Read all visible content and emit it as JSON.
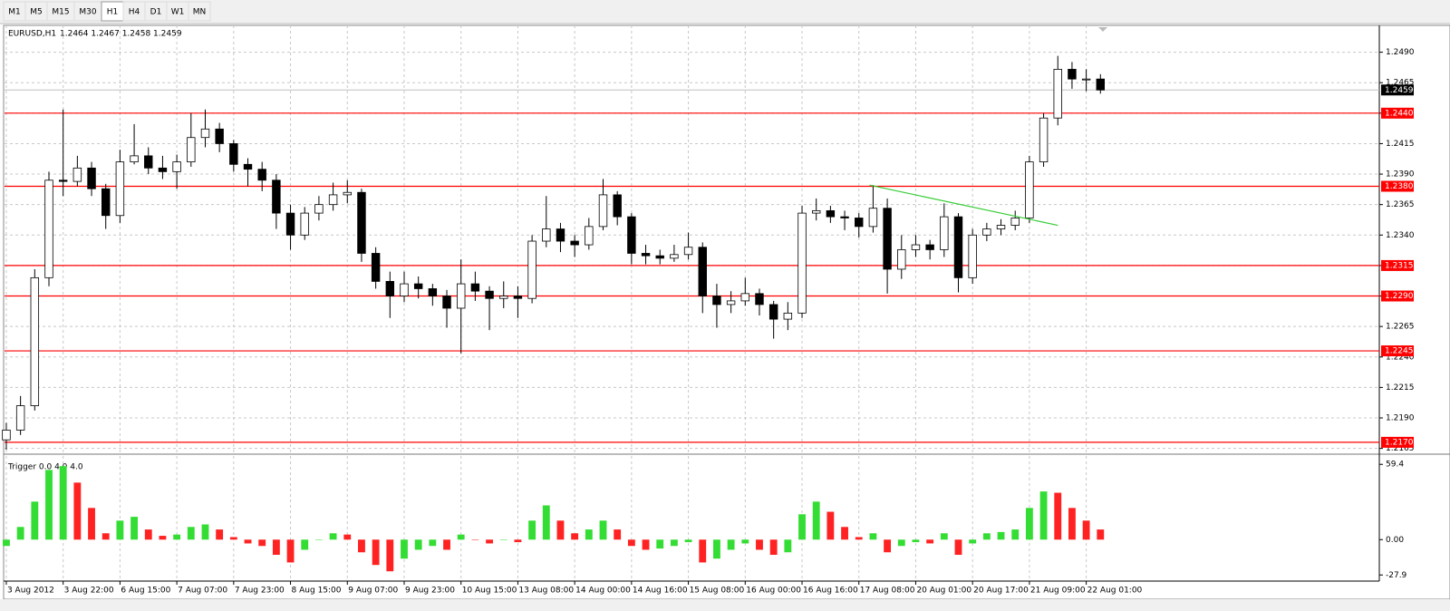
{
  "toolbar": {
    "buttons": [
      "M1",
      "M5",
      "M15",
      "M30",
      "H1",
      "H4",
      "D1",
      "W1",
      "MN"
    ],
    "selected": "H1"
  },
  "chart_data": [
    {
      "type": "candlestick",
      "title": "EURUSD,H1",
      "subtitle": "1.2464 1.2467 1.2458 1.2459",
      "x": [
        0,
        4,
        8,
        12,
        16,
        20,
        24,
        28,
        32,
        36,
        40,
        44,
        48,
        52,
        56,
        60,
        64,
        68,
        72,
        76,
        80,
        84,
        88,
        92,
        96,
        100,
        104,
        108,
        112,
        116,
        120,
        124,
        128,
        132,
        136,
        140,
        144,
        148,
        152,
        156,
        160,
        164,
        168,
        172,
        176,
        180,
        184,
        188,
        192,
        196,
        200,
        204,
        208,
        212,
        216,
        220,
        224,
        228,
        232,
        236,
        240,
        244,
        248,
        252,
        256,
        260,
        264,
        268,
        272,
        276,
        280,
        284,
        288,
        292,
        296,
        300,
        304,
        308
      ],
      "open": [
        1.2172,
        1.218,
        1.22,
        1.2305,
        1.2385,
        1.2384,
        1.2395,
        1.2378,
        1.2356,
        1.24,
        1.2405,
        1.2395,
        1.2392,
        1.24,
        1.242,
        1.2427,
        1.2415,
        1.2398,
        1.2394,
        1.2385,
        1.2358,
        1.234,
        1.2358,
        1.2365,
        1.2373,
        1.2375,
        1.2325,
        1.2302,
        1.229,
        1.23,
        1.2296,
        1.229,
        1.228,
        1.23,
        1.2294,
        1.2288,
        1.229,
        1.2288,
        1.2335,
        1.2345,
        1.2335,
        1.2332,
        1.2347,
        1.2373,
        1.2355,
        1.2325,
        1.2323,
        1.2321,
        1.2324,
        1.233,
        1.229,
        1.2283,
        1.2286,
        1.2292,
        1.2283,
        1.2271,
        1.2276,
        1.2358,
        1.236,
        1.2355,
        1.2354,
        1.2347,
        1.2362,
        1.2312,
        1.2328,
        1.2332,
        1.2328,
        1.2355,
        1.2305,
        1.234,
        1.2345,
        1.2348,
        1.2354,
        1.24,
        1.2436,
        1.2476,
        1.2468,
        1.2468
      ],
      "high": [
        1.2186,
        1.2208,
        1.2312,
        1.2392,
        1.2443,
        1.2405,
        1.24,
        1.2382,
        1.241,
        1.2431,
        1.2412,
        1.2405,
        1.2406,
        1.244,
        1.2443,
        1.2432,
        1.2418,
        1.2403,
        1.24,
        1.239,
        1.2365,
        1.2363,
        1.2372,
        1.2383,
        1.2385,
        1.2378,
        1.233,
        1.231,
        1.231,
        1.2306,
        1.23,
        1.2295,
        1.232,
        1.231,
        1.2298,
        1.2302,
        1.2298,
        1.234,
        1.2372,
        1.235,
        1.234,
        1.2354,
        1.2386,
        1.2376,
        1.2358,
        1.2332,
        1.2328,
        1.2332,
        1.2342,
        1.2334,
        1.23,
        1.2294,
        1.2305,
        1.2296,
        1.2286,
        1.2285,
        1.2364,
        1.237,
        1.2364,
        1.236,
        1.2358,
        1.2381,
        1.237,
        1.234,
        1.234,
        1.2336,
        1.2366,
        1.2358,
        1.2345,
        1.235,
        1.2353,
        1.236,
        1.2405,
        1.244,
        1.2487,
        1.2482,
        1.2476,
        1.2472
      ],
      "low": [
        1.2164,
        1.2176,
        1.2196,
        1.2298,
        1.2372,
        1.238,
        1.2372,
        1.2345,
        1.235,
        1.2398,
        1.239,
        1.2386,
        1.2378,
        1.2396,
        1.2412,
        1.2408,
        1.2392,
        1.238,
        1.2376,
        1.2345,
        1.2328,
        1.2336,
        1.2352,
        1.236,
        1.2366,
        1.2318,
        1.2296,
        1.2272,
        1.2285,
        1.2288,
        1.2282,
        1.2264,
        1.2243,
        1.2286,
        1.2262,
        1.228,
        1.2272,
        1.2284,
        1.233,
        1.2326,
        1.2322,
        1.2328,
        1.2344,
        1.2348,
        1.2316,
        1.2316,
        1.2316,
        1.2318,
        1.232,
        1.2276,
        1.2264,
        1.2276,
        1.2282,
        1.2274,
        1.2255,
        1.2262,
        1.2272,
        1.2352,
        1.235,
        1.2344,
        1.2338,
        1.2342,
        1.2292,
        1.2304,
        1.2322,
        1.232,
        1.2322,
        1.2293,
        1.23,
        1.2335,
        1.234,
        1.2344,
        1.235,
        1.2396,
        1.243,
        1.246,
        1.2458,
        1.2456
      ],
      "close": [
        1.218,
        1.22,
        1.2305,
        1.2385,
        1.2384,
        1.2395,
        1.2378,
        1.2356,
        1.24,
        1.2405,
        1.2395,
        1.2392,
        1.24,
        1.242,
        1.2427,
        1.2415,
        1.2398,
        1.2394,
        1.2385,
        1.2358,
        1.234,
        1.2358,
        1.2365,
        1.2373,
        1.2375,
        1.2325,
        1.2302,
        1.229,
        1.23,
        1.2296,
        1.229,
        1.228,
        1.23,
        1.2294,
        1.2288,
        1.229,
        1.2288,
        1.2335,
        1.2345,
        1.2335,
        1.2332,
        1.2347,
        1.2373,
        1.2355,
        1.2325,
        1.2323,
        1.2321,
        1.2324,
        1.233,
        1.229,
        1.2283,
        1.2286,
        1.2292,
        1.2283,
        1.2271,
        1.2276,
        1.2358,
        1.236,
        1.2355,
        1.2354,
        1.2347,
        1.2362,
        1.2312,
        1.2328,
        1.2332,
        1.2328,
        1.2355,
        1.2305,
        1.234,
        1.2345,
        1.2348,
        1.2354,
        1.24,
        1.2436,
        1.2476,
        1.2468,
        1.2468,
        1.2459
      ],
      "up_color": "#ffffff",
      "down_color": "#000000",
      "outline_color": "#000000",
      "xlim": [
        -0.5,
        386.5
      ],
      "xticks": [
        {
          "value": 0,
          "label": "3 Aug 2012"
        },
        {
          "value": 16,
          "label": "3 Aug 22:00"
        },
        {
          "value": 32,
          "label": "6 Aug 15:00"
        },
        {
          "value": 48,
          "label": "7 Aug 07:00"
        },
        {
          "value": 64,
          "label": "7 Aug 23:00"
        },
        {
          "value": 80,
          "label": "8 Aug 15:00"
        },
        {
          "value": 96,
          "label": "9 Aug 07:00"
        },
        {
          "value": 112,
          "label": "9 Aug 23:00"
        },
        {
          "value": 128,
          "label": "10 Aug 15:00"
        },
        {
          "value": 144,
          "label": "13 Aug 08:00"
        },
        {
          "value": 160,
          "label": "14 Aug 00:00"
        },
        {
          "value": 176,
          "label": "14 Aug 16:00"
        },
        {
          "value": 192,
          "label": "15 Aug 08:00"
        },
        {
          "value": 208,
          "label": "16 Aug 00:00"
        },
        {
          "value": 224,
          "label": "16 Aug 16:00"
        },
        {
          "value": 240,
          "label": "17 Aug 08:00"
        },
        {
          "value": 256,
          "label": "20 Aug 01:00"
        },
        {
          "value": 272,
          "label": "20 Aug 17:00"
        },
        {
          "value": 288,
          "label": "21 Aug 09:00"
        },
        {
          "value": 304,
          "label": "22 Aug 01:00"
        }
      ],
      "ylim": [
        1.2161,
        1.2512
      ],
      "yticks": [
        {
          "value": 1.249,
          "label": "1.2490"
        },
        {
          "value": 1.2465,
          "label": "1.2465"
        },
        {
          "value": 1.244,
          "label": "1.2440"
        },
        {
          "value": 1.2415,
          "label": "1.2415"
        },
        {
          "value": 1.239,
          "label": "1.2390"
        },
        {
          "value": 1.2365,
          "label": "1.2365"
        },
        {
          "value": 1.234,
          "label": "1.2340"
        },
        {
          "value": 1.2315,
          "label": "1.2315"
        },
        {
          "value": 1.229,
          "label": "1.2290"
        },
        {
          "value": 1.2265,
          "label": "1.2265"
        },
        {
          "value": 1.224,
          "label": "1.2240"
        },
        {
          "value": 1.2215,
          "label": "1.2215"
        },
        {
          "value": 1.219,
          "label": "1.2190"
        },
        {
          "value": 1.2165,
          "label": "1.2165"
        }
      ],
      "grid": true,
      "levels": [
        {
          "value": 1.244,
          "label": "1.2440"
        },
        {
          "value": 1.238,
          "label": "1.2380"
        },
        {
          "value": 1.2315,
          "label": "1.2315"
        },
        {
          "value": 1.229,
          "label": "1.2290"
        },
        {
          "value": 1.2245,
          "label": "1.2245"
        },
        {
          "value": 1.217,
          "label": "1.2170"
        }
      ],
      "level_color": "#ff0000",
      "last_price": {
        "value": 1.2459,
        "label": "1.2459"
      },
      "trendline": {
        "x": [
          243,
          296
        ],
        "y": [
          1.2381,
          1.2348
        ],
        "color": "#33cc33"
      }
    },
    {
      "type": "bar",
      "title": "Trigger 0.0 4.0 4.0",
      "x": [
        0,
        4,
        8,
        12,
        16,
        20,
        24,
        28,
        32,
        36,
        40,
        44,
        48,
        52,
        56,
        60,
        64,
        68,
        72,
        76,
        80,
        84,
        88,
        92,
        96,
        100,
        104,
        108,
        112,
        116,
        120,
        124,
        128,
        132,
        136,
        140,
        144,
        148,
        152,
        156,
        160,
        164,
        168,
        172,
        176,
        180,
        184,
        188,
        192,
        196,
        200,
        204,
        208,
        212,
        216,
        220,
        224,
        228,
        232,
        236,
        240,
        244,
        248,
        252,
        256,
        260,
        264,
        268,
        272,
        276,
        280,
        284,
        288,
        292,
        296,
        300,
        304,
        308
      ],
      "values": [
        -5,
        10,
        30,
        55,
        58,
        45,
        25,
        5,
        15,
        18,
        8,
        3,
        4,
        10,
        12,
        8,
        2,
        -3,
        -5,
        -12,
        -18,
        -8,
        0,
        5,
        4,
        -10,
        -20,
        -25,
        -15,
        -8,
        -5,
        -8,
        4,
        0,
        -3,
        0,
        -2,
        15,
        27,
        15,
        5,
        8,
        15,
        8,
        -5,
        -8,
        -7,
        -5,
        -2,
        -18,
        -15,
        -8,
        -3,
        -8,
        -12,
        -10,
        20,
        30,
        22,
        10,
        2,
        5,
        -10,
        -5,
        -2,
        -3,
        5,
        -12,
        -3,
        5,
        6,
        8,
        25,
        38,
        37,
        25,
        15,
        8
      ],
      "up_color": "#33dd33",
      "down_color": "#ff2222",
      "xlim": [
        -0.5,
        386.5
      ],
      "ylim": [
        -32,
        66
      ],
      "yticks": [
        59.4,
        {
          "value": 0,
          "label": "0.00"
        },
        -27.9
      ]
    }
  ]
}
